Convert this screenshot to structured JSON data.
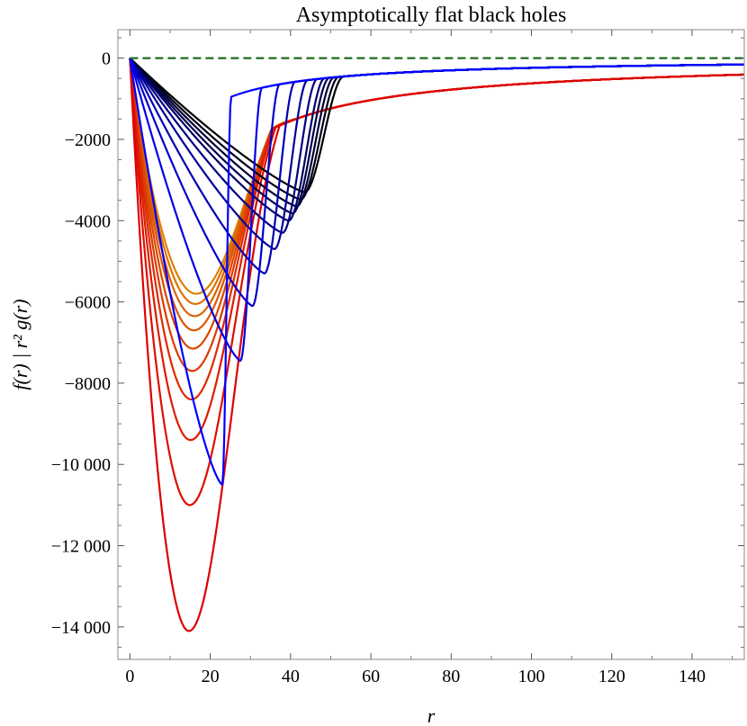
{
  "chart_data": {
    "type": "line",
    "title": "Asymptotically flat black holes",
    "xlabel": "r",
    "ylabel": "f(r) | r² g(r)",
    "xlim": [
      -3,
      153
    ],
    "ylim": [
      -14800,
      700
    ],
    "x_ticks": [
      0,
      20,
      40,
      60,
      80,
      100,
      120,
      140
    ],
    "x_tick_labels": [
      "0",
      "20",
      "40",
      "60",
      "80",
      "100",
      "120",
      "140"
    ],
    "y_ticks": [
      0,
      -2000,
      -4000,
      -6000,
      -8000,
      -10000,
      -12000,
      -14000
    ],
    "y_tick_labels": [
      "0",
      "−2000",
      "−4000",
      "−6000",
      "−8000",
      "−10 000",
      "−12 000",
      "−14 000"
    ],
    "grid": false,
    "legend": "none",
    "reference_line": {
      "y": 0,
      "style": "dashed",
      "color": "#1f6b1f"
    },
    "series_families": [
      {
        "color_from": "#000000",
        "color_to": "#0000ff",
        "shape": "deep-well",
        "tail_amplitude": 24000,
        "curves": [
          {
            "r_min": 43.5,
            "y_min": -3300
          },
          {
            "r_min": 42.5,
            "y_min": -3480
          },
          {
            "r_min": 41.5,
            "y_min": -3650
          },
          {
            "r_min": 40.5,
            "y_min": -3820
          },
          {
            "r_min": 39.5,
            "y_min": -4000
          },
          {
            "r_min": 38.0,
            "y_min": -4300
          },
          {
            "r_min": 36.0,
            "y_min": -4700
          },
          {
            "r_min": 33.5,
            "y_min": -5300
          },
          {
            "r_min": 30.5,
            "y_min": -6100
          },
          {
            "r_min": 27.5,
            "y_min": -7450
          },
          {
            "r_min": 23.0,
            "y_min": -10500
          }
        ]
      },
      {
        "color_from": "#dd8000",
        "color_to": "#dd0000",
        "shape": "broad-well",
        "tail_amplitude": 62000,
        "curves": [
          {
            "r_min": 16.5,
            "y_min": -5800
          },
          {
            "r_min": 16.3,
            "y_min": -6050
          },
          {
            "r_min": 16.1,
            "y_min": -6350
          },
          {
            "r_min": 15.9,
            "y_min": -6700
          },
          {
            "r_min": 15.7,
            "y_min": -7150
          },
          {
            "r_min": 15.5,
            "y_min": -7700
          },
          {
            "r_min": 15.3,
            "y_min": -8400
          },
          {
            "r_min": 15.1,
            "y_min": -9400
          },
          {
            "r_min": 14.9,
            "y_min": -11000
          },
          {
            "r_min": 14.7,
            "y_min": -14100
          }
        ]
      }
    ]
  }
}
